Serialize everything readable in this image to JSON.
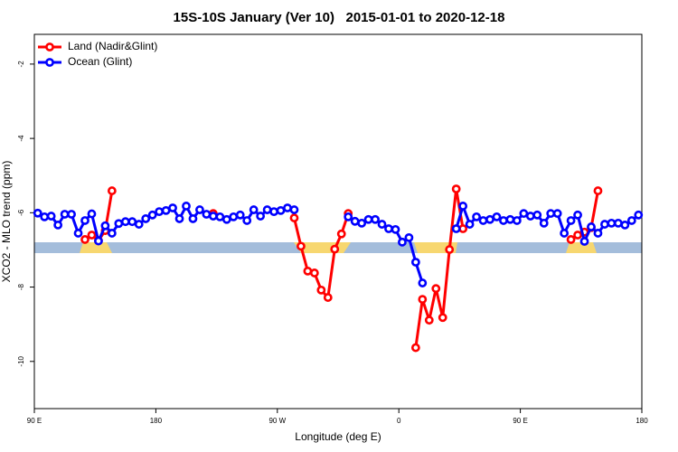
{
  "chart_data": {
    "type": "line",
    "title": "15S-10S January (Ver 10)   2015-01-01 to 2020-12-18",
    "x_label": "Longitude (deg E)",
    "y_label": "XCO2 - MLO trend (ppm)",
    "xlim": [
      90,
      540
    ],
    "ylim": [
      -11.27,
      -1.2
    ],
    "xticks": [
      {
        "value": 90,
        "label": "90 E"
      },
      180,
      {
        "value": 270,
        "label": "90 W"
      },
      {
        "value": 360,
        "label": "0"
      },
      {
        "value": 450,
        "label": "90 E"
      },
      {
        "value": 540,
        "label": "180"
      }
    ],
    "yticks": [
      -2,
      -4,
      -6,
      -8,
      -10
    ],
    "legend": "top-left",
    "x": [
      92.5,
      97.5,
      102.5,
      107.5,
      112.5,
      117.5,
      122.5,
      127.5,
      132.5,
      137.5,
      142.5,
      147.5,
      152.5,
      157.5,
      162.5,
      167.5,
      172.5,
      177.5,
      182.5,
      187.5,
      192.5,
      197.5,
      202.5,
      207.5,
      212.5,
      217.5,
      222.5,
      227.5,
      232.5,
      237.5,
      242.5,
      247.5,
      252.5,
      257.5,
      262.5,
      267.5,
      272.5,
      277.5,
      282.5,
      287.5,
      292.5,
      297.5,
      302.5,
      307.5,
      312.5,
      317.5,
      322.5,
      327.5,
      332.5,
      337.5,
      342.5,
      347.5,
      352.5,
      357.5,
      362.5,
      367.5,
      372.5,
      377.5,
      382.5,
      387.5,
      392.5,
      397.5,
      402.5,
      407.5,
      412.5,
      417.5,
      422.5,
      427.5,
      432.5,
      437.5,
      442.5,
      447.5,
      452.5,
      457.5,
      462.5,
      467.5,
      472.5,
      477.5,
      482.5,
      487.5,
      492.5,
      497.5,
      502.5,
      507.5,
      512.5,
      517.5,
      522.5,
      527.5,
      532.5,
      537.5
    ],
    "series": [
      {
        "name": "Land (Nadir&Glint)",
        "color": "#ff0000",
        "values": [
          null,
          null,
          null,
          null,
          null,
          null,
          null,
          -6.72,
          -6.6,
          -6.75,
          -6.48,
          -5.41,
          null,
          null,
          null,
          null,
          null,
          null,
          null,
          null,
          null,
          null,
          null,
          null,
          null,
          null,
          -6.02,
          null,
          null,
          null,
          null,
          null,
          null,
          null,
          null,
          null,
          null,
          null,
          -6.14,
          -6.9,
          -7.57,
          -7.62,
          -8.08,
          -8.28,
          -6.98,
          -6.57,
          -6.02,
          null,
          null,
          null,
          null,
          null,
          null,
          null,
          null,
          null,
          -9.63,
          -8.33,
          -8.89,
          -8.04,
          -8.82,
          -6.99,
          -5.36,
          -6.43,
          null,
          null,
          null,
          null,
          null,
          null,
          null,
          null,
          null,
          null,
          null,
          null,
          null,
          null,
          null,
          -6.72,
          -6.6,
          -6.52,
          -6.4,
          -5.41,
          null,
          null,
          null,
          null,
          null,
          null
        ]
      },
      {
        "name": "Ocean (Glint)",
        "color": "#0000ff",
        "values": [
          -6.01,
          -6.11,
          -6.09,
          -6.33,
          -6.04,
          -6.04,
          -6.55,
          -6.21,
          -6.03,
          -6.76,
          -6.35,
          -6.55,
          -6.29,
          -6.24,
          -6.24,
          -6.31,
          -6.16,
          -6.06,
          -5.97,
          -5.94,
          -5.87,
          -6.16,
          -5.82,
          -6.16,
          -5.92,
          -6.04,
          -6.09,
          -6.11,
          -6.18,
          -6.11,
          -6.06,
          -6.21,
          -5.92,
          -6.09,
          -5.92,
          -5.97,
          -5.94,
          -5.87,
          -5.92,
          null,
          null,
          null,
          null,
          null,
          null,
          null,
          -6.11,
          -6.23,
          -6.28,
          -6.18,
          -6.18,
          -6.31,
          -6.43,
          -6.45,
          -6.79,
          -6.67,
          -7.33,
          -7.89,
          null,
          null,
          null,
          null,
          -6.43,
          -5.82,
          -6.31,
          -6.11,
          -6.21,
          -6.18,
          -6.11,
          -6.21,
          -6.18,
          -6.21,
          -6.02,
          -6.09,
          -6.06,
          -6.28,
          -6.02,
          -6.02,
          -6.55,
          -6.21,
          -6.06,
          -6.77,
          -6.38,
          -6.55,
          -6.31,
          -6.28,
          -6.28,
          -6.33,
          -6.21,
          -6.06
        ]
      }
    ]
  }
}
